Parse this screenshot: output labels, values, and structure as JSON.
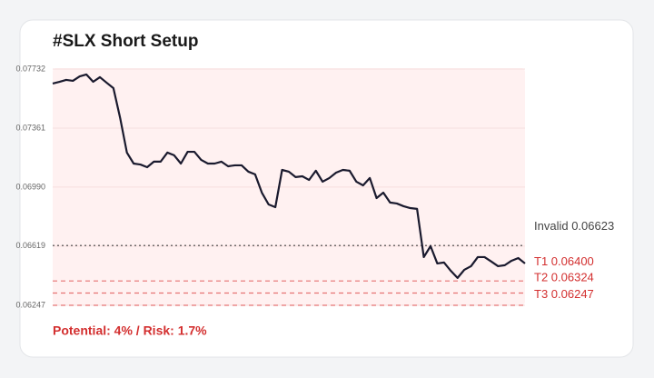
{
  "chart_data": {
    "type": "line",
    "title": "#SLX Short Setup",
    "values": [
      0.07641,
      0.07652,
      0.07664,
      0.07658,
      0.07686,
      0.07698,
      0.07652,
      0.07681,
      0.07646,
      0.07612,
      0.07424,
      0.07207,
      0.07138,
      0.07132,
      0.07115,
      0.0715,
      0.0715,
      0.07207,
      0.0719,
      0.07138,
      0.07212,
      0.07212,
      0.07161,
      0.07138,
      0.07138,
      0.0715,
      0.07121,
      0.07127,
      0.07127,
      0.07087,
      0.0707,
      0.06955,
      0.06881,
      0.06864,
      0.07098,
      0.07087,
      0.07053,
      0.07058,
      0.07035,
      0.07093,
      0.07024,
      0.07047,
      0.07081,
      0.07098,
      0.07093,
      0.07024,
      0.07001,
      0.07047,
      0.06921,
      0.06955,
      0.06893,
      0.06887,
      0.0687,
      0.06858,
      0.06853,
      0.0655,
      0.06619,
      0.0651,
      0.06516,
      0.06464,
      0.06419,
      0.0647,
      0.06493,
      0.0655,
      0.0655,
      0.06522,
      0.06493,
      0.06499,
      0.06527,
      0.06544,
      0.0651
    ],
    "color": "#1a1a2e",
    "ylim": [
      0.06247,
      0.07732
    ],
    "yticks": [
      0.06247,
      0.06619,
      {
        "value": 0.0699,
        "label": "0.06990"
      },
      0.07361,
      0.07732
    ],
    "grid": true,
    "levels": {
      "names": [
        "Invalid",
        "T1",
        "T2",
        "T3"
      ],
      "values": [
        0.06623,
        0.064,
        0.06324,
        0.06247
      ],
      "value_labels": [
        "0.06623",
        "0.06400",
        "0.06324",
        "0.06247"
      ],
      "colors": [
        "#444444",
        "#e57373",
        "#e57373",
        "#e57373"
      ],
      "label_colors": [
        "#444444",
        "#d32f2f",
        "#d32f2f",
        "#d32f2f"
      ]
    },
    "footer": "Potential: 4% / Risk: 1.7%"
  }
}
